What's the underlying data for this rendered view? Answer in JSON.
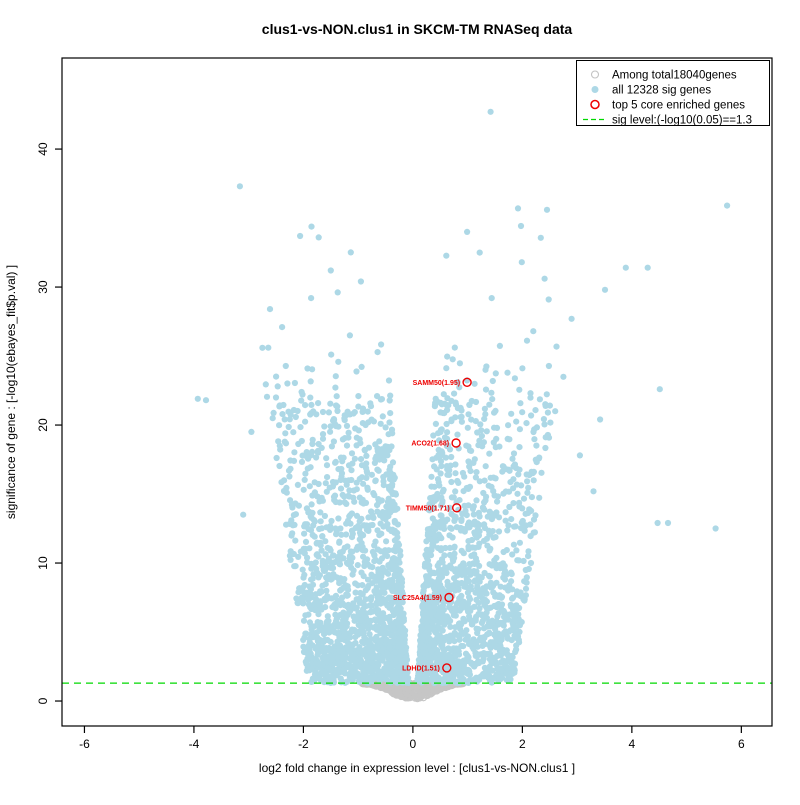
{
  "chart_data": {
    "type": "scatter",
    "subtype": "volcano",
    "title": "clus1-vs-NON.clus1 in SKCM-TM RNASeq data",
    "xlabel": "log2 fold change in expression level : [clus1-vs-NON.clus1 ]",
    "ylabel": "significance of gene : [-log10(ebayes_fit$p.val) ]",
    "xlim": [
      -6.41,
      6.56
    ],
    "ylim": [
      -1.81,
      46.6
    ],
    "xticks": [
      -6,
      -4,
      -2,
      0,
      2,
      4,
      6
    ],
    "yticks": [
      0,
      10,
      20,
      30,
      40
    ],
    "grid": false,
    "legend_position": "top-right",
    "legend": [
      {
        "label": "Among total18040genes",
        "symbol": "open-circle",
        "color": "#c3c3c3"
      },
      {
        "label": "all 12328 sig genes",
        "symbol": "filled-circle",
        "color": "#add8e6"
      },
      {
        "label": "top 5 core enriched genes",
        "symbol": "open-circle-bold",
        "color": "#ee0000"
      },
      {
        "label": "sig level:(-log10(0.05)==1.3",
        "symbol": "dashed-line",
        "color": "#00d800"
      }
    ],
    "sig_level": 1.3,
    "total_genes": 18040,
    "sig_genes": 12328,
    "top_genes": [
      {
        "name": "SAMM50",
        "score": 1.95,
        "label": "SAMM50(1.95)",
        "log2fc": 0.99,
        "neglog10p": 23.1
      },
      {
        "name": "ACO2",
        "score": 1.68,
        "label": "ACO2(1.68)",
        "log2fc": 0.79,
        "neglog10p": 18.7
      },
      {
        "name": "TIMM50",
        "score": 1.71,
        "label": "TIMM50(1.71)",
        "log2fc": 0.8,
        "neglog10p": 14.0
      },
      {
        "name": "SLC25A4",
        "score": 1.59,
        "label": "SLC25A4(1.59)",
        "log2fc": 0.66,
        "neglog10p": 7.5
      },
      {
        "name": "LDHD",
        "score": 1.51,
        "label": "LDHD(1.51)",
        "log2fc": 0.62,
        "neglog10p": 2.4
      }
    ],
    "notable_points": [
      [
        -3.16,
        37.3
      ],
      [
        -2.06,
        33.7
      ],
      [
        -1.72,
        33.6
      ],
      [
        -2.61,
        28.4
      ],
      [
        -2.39,
        27.1
      ],
      [
        -1.86,
        29.2
      ],
      [
        -1.5,
        31.2
      ],
      [
        -0.95,
        30.4
      ],
      [
        -1.15,
        26.5
      ],
      [
        -2.75,
        25.6
      ],
      [
        -3.93,
        21.9
      ],
      [
        -3.78,
        21.8
      ],
      [
        -2.95,
        19.5
      ],
      [
        -2.5,
        22.0
      ],
      [
        -3.1,
        13.5
      ],
      [
        1.42,
        42.7
      ],
      [
        1.92,
        35.7
      ],
      [
        2.45,
        35.6
      ],
      [
        5.74,
        35.9
      ],
      [
        0.99,
        34.0
      ],
      [
        1.22,
        32.5
      ],
      [
        1.99,
        31.8
      ],
      [
        3.89,
        31.4
      ],
      [
        4.29,
        31.4
      ],
      [
        3.51,
        29.8
      ],
      [
        2.48,
        29.1
      ],
      [
        1.44,
        29.2
      ],
      [
        2.9,
        27.7
      ],
      [
        2.2,
        26.8
      ],
      [
        2.75,
        23.5
      ],
      [
        4.51,
        22.6
      ],
      [
        3.42,
        20.4
      ],
      [
        3.05,
        17.8
      ],
      [
        3.3,
        15.2
      ],
      [
        2.6,
        21.0
      ],
      [
        4.47,
        12.9
      ],
      [
        4.66,
        12.9
      ],
      [
        5.53,
        12.5
      ]
    ],
    "point_cloud": {
      "seed": 20,
      "sig_count_rendered": 3000,
      "nonsig_count_rendered": 900,
      "colors": {
        "sig": "#add8e6",
        "nonsig": "#c6c6c6"
      }
    }
  }
}
